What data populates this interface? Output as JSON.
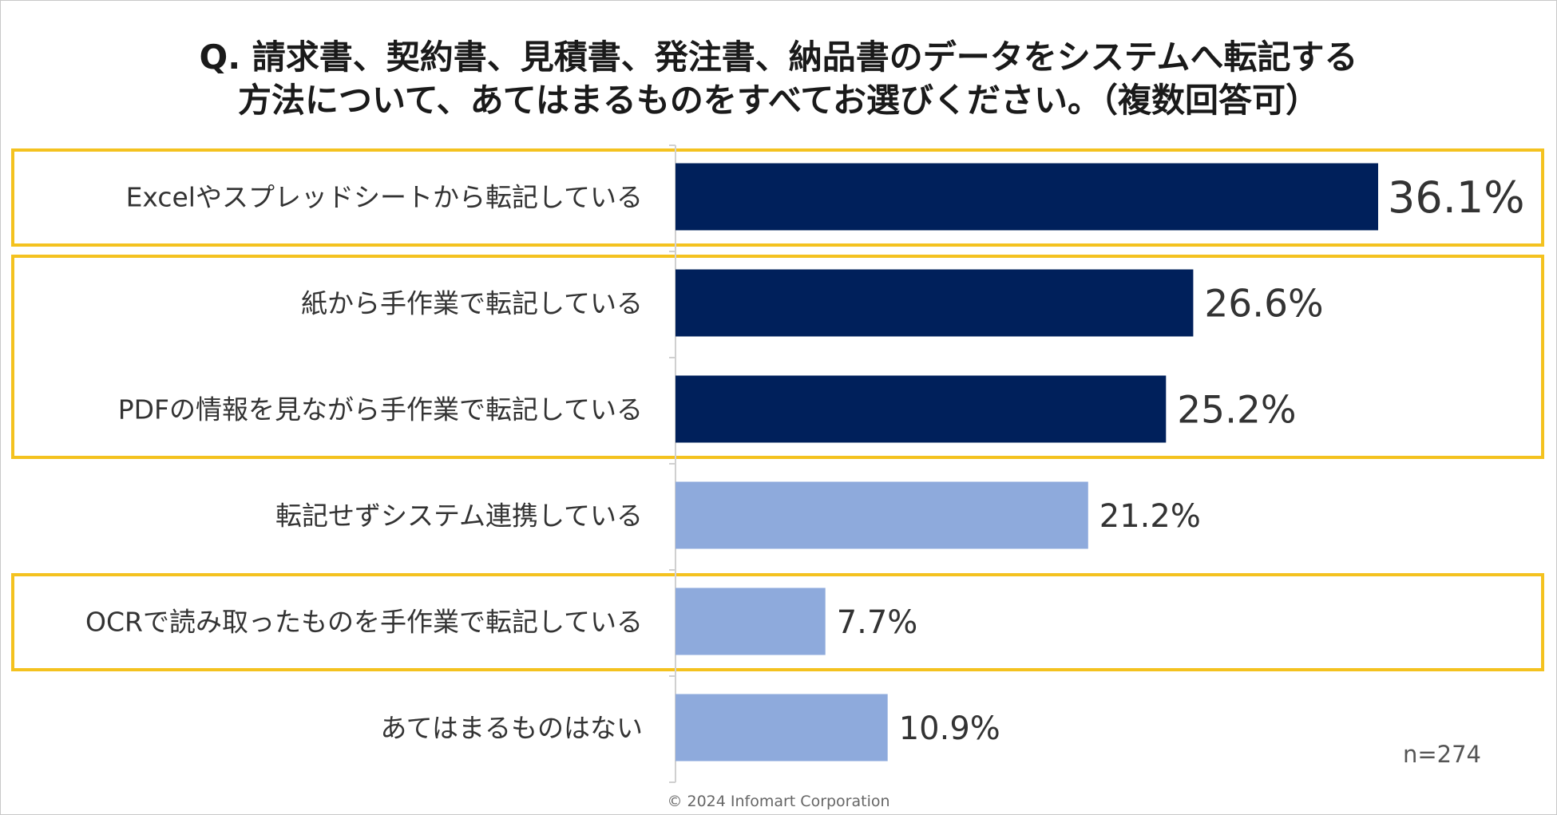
{
  "chart_data": {
    "type": "bar",
    "orientation": "horizontal",
    "title_lines": [
      "Q. 請求書、契約書、見積書、発注書、納品書のデータをシステムへ転記する",
      "方法について、あてはまるものをすべてお選びください。（複数回答可）"
    ],
    "categories": [
      "Excelやスプレッドシートから転記している",
      "紙から手作業で転記している",
      "PDFの情報を見ながら手作業で転記している",
      "転記せずシステム連携している",
      "OCRで読み取ったものを手作業で転記している",
      "あてはまるものはない"
    ],
    "values": [
      36.1,
      26.6,
      25.2,
      21.2,
      7.7,
      10.9
    ],
    "value_labels": [
      "36.1%",
      "26.6%",
      "25.2%",
      "21.2%",
      "7.7%",
      "10.9%"
    ],
    "unit": "%",
    "xlim": [
      0,
      36.1
    ],
    "highlighted_categories": [
      0,
      1,
      2
    ],
    "highlight_groups": [
      [
        0
      ],
      [
        1,
        2
      ],
      [
        4
      ]
    ],
    "sample_size": "n=274",
    "copyright": "© 2024 Infomart Corporation",
    "colors": {
      "highlight_bar": "#00205b",
      "normal_bar": "#8eaadc",
      "frame": "#f4c21f",
      "axis": "#d0d0d0"
    }
  }
}
